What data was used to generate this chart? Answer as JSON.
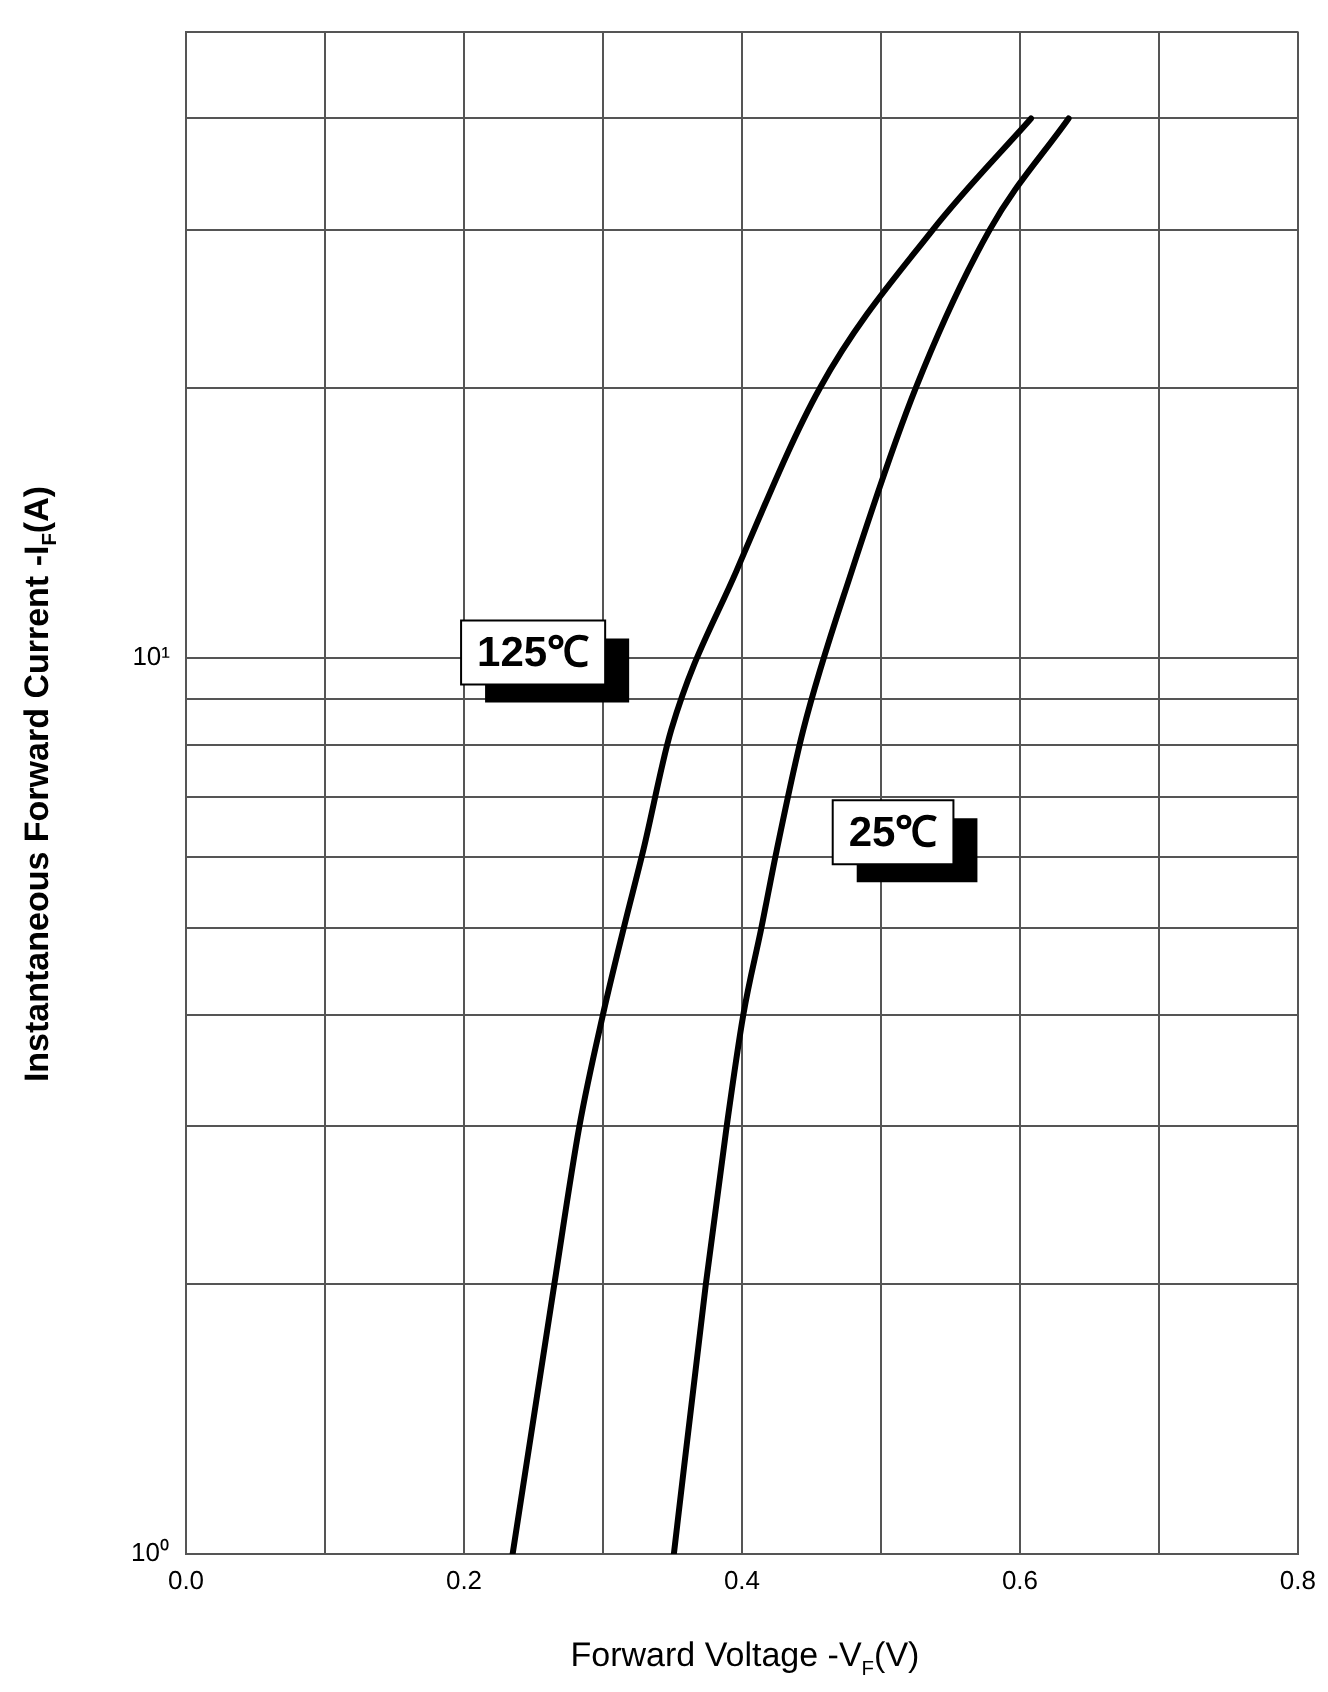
{
  "chart_data": {
    "type": "line",
    "xlabel": "Forward Voltage -V$_{F}$(V)",
    "ylabel": "Instantaneous Forward Current -I$_{F}$(A)",
    "log": "y",
    "grid": true,
    "legend": false,
    "marker": "none",
    "line_style": "solid",
    "xlim": [
      0,
      0.8
    ],
    "xticks": [
      {
        "value": 0,
        "label": "0.0"
      },
      {
        "value": 0.1,
        "label": null
      },
      {
        "value": 0.2,
        "label": "0.2"
      },
      {
        "value": 0.3,
        "label": null
      },
      {
        "value": 0.4,
        "label": "0.4"
      },
      {
        "value": 0.5,
        "label": null
      },
      {
        "value": 0.6,
        "label": "0.6"
      },
      {
        "value": 0.7,
        "label": null
      },
      {
        "value": 0.8,
        "label": "0.8"
      }
    ],
    "ylim": [
      1,
      50
    ],
    "yticks": [
      {
        "value": 1,
        "label": "10⁰"
      },
      {
        "value": 2,
        "label": null
      },
      {
        "value": 3,
        "label": null
      },
      {
        "value": 4,
        "label": null
      },
      {
        "value": 5,
        "label": null
      },
      {
        "value": 6,
        "label": null
      },
      {
        "value": 7,
        "label": null
      },
      {
        "value": 8,
        "label": null
      },
      {
        "value": 9,
        "label": null
      },
      {
        "value": 10,
        "label": "10¹"
      },
      {
        "value": 20,
        "label": null
      },
      {
        "value": 30,
        "label": null
      },
      {
        "value": 40,
        "label": null
      },
      {
        "value": 50,
        "label": null
      }
    ],
    "series": [
      {
        "name": "125℃",
        "color": "#000000",
        "x": [
          0.235,
          0.265,
          0.283,
          0.3,
          0.315,
          0.329,
          0.349,
          0.396,
          0.456,
          0.537,
          0.608
        ],
        "values": [
          1,
          2,
          3,
          4,
          5,
          6.1,
          8.3,
          12.5,
          20,
          30,
          40
        ]
      },
      {
        "name": "25℃",
        "color": "#000000",
        "x": [
          0.351,
          0.374,
          0.389,
          0.401,
          0.414,
          0.425,
          0.444,
          0.479,
          0.525,
          0.578,
          0.635
        ],
        "values": [
          1,
          2,
          3,
          4,
          5,
          6.1,
          8.3,
          12.5,
          20,
          30,
          40
        ]
      }
    ]
  }
}
